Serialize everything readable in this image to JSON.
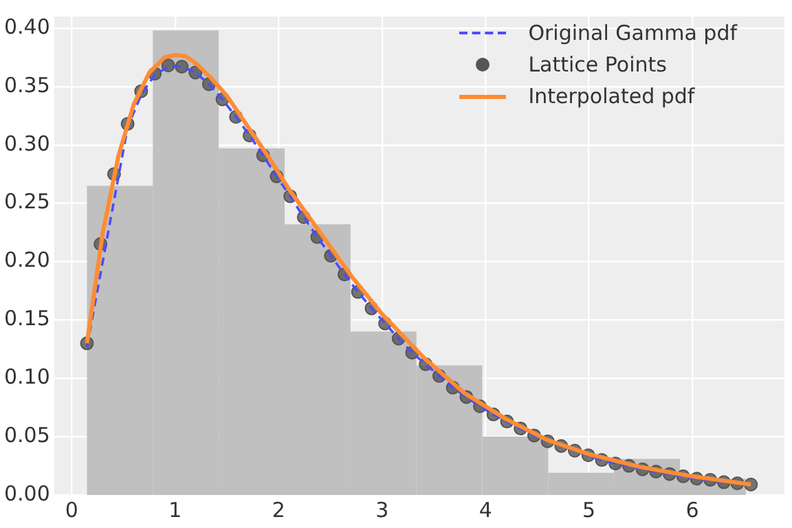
{
  "chart_data": {
    "type": "histogram",
    "bins": [
      0.147,
      0.784,
      1.421,
      2.058,
      2.695,
      3.332,
      3.969,
      4.606,
      5.243,
      5.88,
      6.517
    ],
    "values": [
      0.265,
      0.398,
      0.297,
      0.232,
      0.14,
      0.111,
      0.05,
      0.019,
      0.031,
      0.014
    ],
    "color": "#c0c0c0",
    "series": [
      {
        "name": "Original Gamma pdf",
        "type": "line",
        "color": "#4c4cff",
        "line_style": "dashed",
        "x": [
          0.147,
          0.278,
          0.409,
          0.54,
          0.671,
          0.802,
          0.933,
          1.064,
          1.195,
          1.326,
          1.457,
          1.588,
          1.719,
          1.85,
          1.981,
          2.112,
          2.243,
          2.374,
          2.505,
          2.636,
          2.767,
          2.898,
          3.029,
          3.16,
          3.291,
          3.422,
          3.553,
          3.684,
          3.815,
          3.946,
          4.077,
          4.208,
          4.339,
          4.47,
          4.601,
          4.732,
          4.863,
          4.994,
          5.125,
          5.256,
          5.387,
          5.518,
          5.649,
          5.78,
          5.911,
          6.042,
          6.173,
          6.304
        ],
        "values": [
          0.127,
          null,
          null,
          0.315,
          0.343,
          0.36,
          0.367,
          0.367,
          0.362,
          0.352,
          0.339,
          0.324,
          0.308,
          0.291,
          0.273,
          0.256,
          0.238,
          0.221,
          0.205,
          0.189,
          0.174,
          0.16,
          0.147,
          0.134,
          0.122,
          0.112,
          0.102,
          0.092,
          0.084,
          0.076,
          0.069,
          0.063,
          0.057,
          0.051,
          0.046,
          0.042,
          0.038,
          0.034,
          0.03,
          0.027,
          0.025,
          0.022,
          0.02,
          0.018,
          0.016,
          0.014,
          0.013,
          0.011
        ]
      },
      {
        "name": "Lattice Points",
        "type": "scatter",
        "color": "#555555",
        "marker": "circle",
        "x": [
          0.147,
          0.278,
          0.409,
          0.54,
          0.671,
          0.802,
          0.933,
          1.064,
          1.195,
          1.326,
          1.457,
          1.588,
          1.719,
          1.85,
          1.981,
          2.112,
          2.243,
          2.374,
          2.505,
          2.636,
          2.767,
          2.898,
          3.029,
          3.16,
          3.291,
          3.422,
          3.553,
          3.684,
          3.815,
          3.946,
          4.077,
          4.208,
          4.339,
          4.47,
          4.601,
          4.732,
          4.863,
          4.994,
          5.125,
          5.256,
          5.387,
          5.518,
          5.649,
          5.78,
          5.911,
          6.042,
          6.173,
          6.304,
          6.435,
          6.566
        ],
        "values": [
          0.13,
          0.215,
          0.275,
          0.318,
          0.346,
          0.361,
          0.368,
          0.367,
          0.362,
          0.352,
          0.339,
          0.324,
          0.308,
          0.291,
          0.273,
          0.256,
          0.238,
          0.221,
          0.205,
          0.189,
          0.174,
          0.16,
          0.147,
          0.134,
          0.122,
          0.112,
          0.102,
          0.092,
          0.084,
          0.076,
          0.069,
          0.063,
          0.057,
          0.051,
          0.046,
          0.042,
          0.038,
          0.034,
          0.03,
          0.027,
          0.025,
          0.022,
          0.02,
          0.018,
          0.016,
          0.014,
          0.013,
          0.011,
          0.01,
          0.009
        ]
      },
      {
        "name": "Interpolated pdf",
        "type": "line",
        "color": "#ff8c33",
        "line_style": "solid",
        "x": [
          0.147,
          0.3,
          0.45,
          0.6,
          0.75,
          0.9,
          1.0,
          1.1,
          1.2,
          1.35,
          1.5,
          1.7,
          1.9,
          2.1,
          2.4,
          2.7,
          3.0,
          3.4,
          3.8,
          4.2,
          4.6,
          5.0,
          5.5,
          6.0,
          6.566
        ],
        "values": [
          0.13,
          0.225,
          0.29,
          0.335,
          0.362,
          0.375,
          0.377,
          0.376,
          0.37,
          0.357,
          0.342,
          0.316,
          0.29,
          0.262,
          0.225,
          0.188,
          0.155,
          0.118,
          0.087,
          0.065,
          0.047,
          0.035,
          0.024,
          0.016,
          0.009
        ]
      }
    ],
    "xlim": [
      -0.17,
      6.89
    ],
    "ylim": [
      0,
      0.41
    ],
    "xticks": [
      0,
      1,
      2,
      3,
      4,
      5,
      6
    ],
    "yticks": [
      {
        "value": 0,
        "label": "0.00"
      },
      {
        "value": 0.05,
        "label": "0.05"
      },
      {
        "value": 0.1,
        "label": "0.10"
      },
      {
        "value": 0.15,
        "label": "0.15"
      },
      {
        "value": 0.2,
        "label": "0.20"
      },
      {
        "value": 0.25,
        "label": "0.25"
      },
      {
        "value": 0.3,
        "label": "0.30"
      },
      {
        "value": 0.35,
        "label": "0.35"
      },
      {
        "value": 0.4,
        "label": "0.40"
      }
    ],
    "grid": true,
    "legend": "top right"
  }
}
